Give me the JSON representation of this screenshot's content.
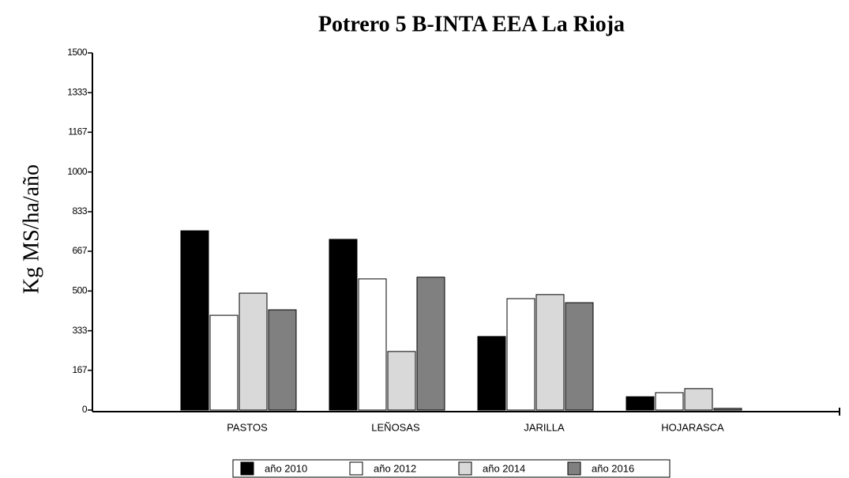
{
  "chart_data": {
    "type": "bar",
    "title": "Potrero 5 B-INTA EEA La Rioja",
    "y_label": "Kg MS/ha/año",
    "categories": [
      "PASTOS",
      "LEÑOSAS",
      "JARILLA",
      "HOJARASCA"
    ],
    "series": [
      {
        "name": "año 2010",
        "color": "#000000",
        "values": [
          753,
          717,
          309,
          56
        ]
      },
      {
        "name": "año 2012",
        "color": "#ffffff",
        "values": [
          398,
          551,
          468,
          73
        ]
      },
      {
        "name": "año 2014",
        "color": "#d9d9d9",
        "values": [
          491,
          246,
          485,
          90
        ]
      },
      {
        "name": "año 2016",
        "color": "#808080",
        "values": [
          421,
          558,
          451,
          7
        ]
      }
    ],
    "ylim": [
      0,
      1500
    ],
    "yticks": [
      0,
      167,
      333,
      500,
      667,
      833,
      1000,
      1167,
      1333,
      1500
    ],
    "legend": "bottom"
  }
}
